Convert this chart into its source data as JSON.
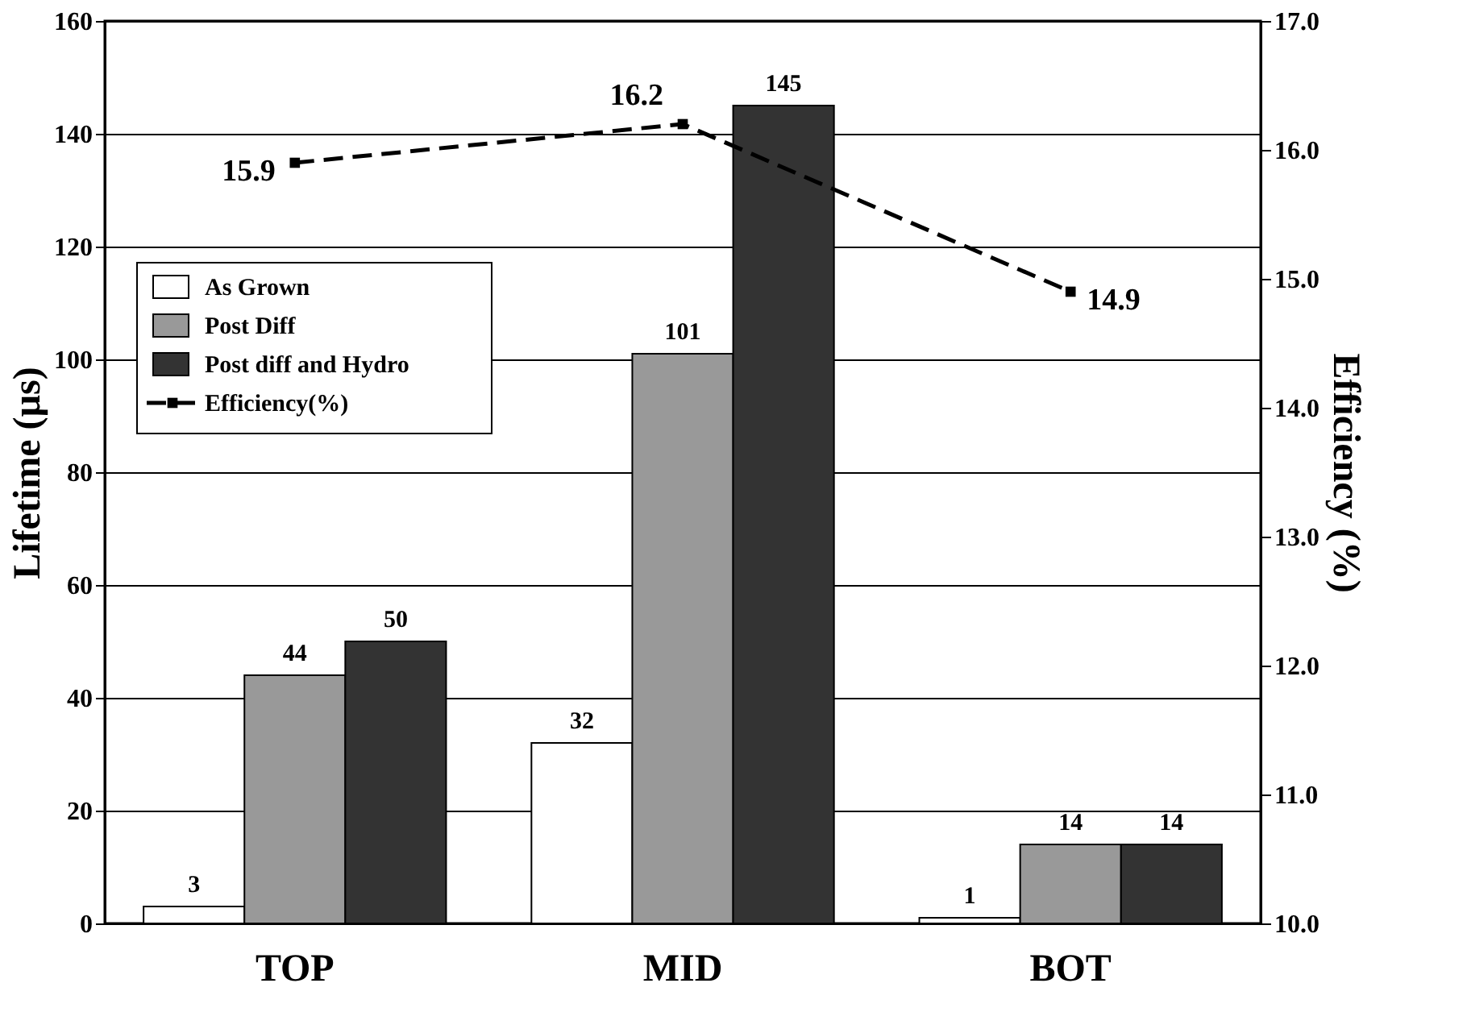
{
  "chart_data": {
    "type": "bar",
    "categories": [
      "TOP",
      "MID",
      "BOT"
    ],
    "ylabel": "Lifetime (µs)",
    "y2label": "Efficiency (%)",
    "series": [
      {
        "name": "As Grown",
        "color": "#ffffff",
        "values": [
          3,
          32,
          1
        ]
      },
      {
        "name": "Post Diff",
        "color": "#999999",
        "values": [
          44,
          101,
          14
        ]
      },
      {
        "name": "Post diff and Hydro",
        "color": "#333333",
        "values": [
          50,
          145,
          14
        ]
      },
      {
        "name": "Efficiency(%)",
        "type": "line",
        "axis": "y2",
        "color": "#000000",
        "marker": "square",
        "line_style": "dashed",
        "values": [
          15.9,
          16.2,
          14.9
        ]
      }
    ],
    "ylim": [
      0,
      160
    ],
    "yticks": [
      0,
      20,
      40,
      60,
      80,
      100,
      120,
      140,
      160
    ],
    "y2lim": [
      10,
      17
    ],
    "y2ticks": [
      {
        "value": 10,
        "label": "10.0"
      },
      {
        "value": 11,
        "label": "11.0"
      },
      {
        "value": 12,
        "label": "12.0"
      },
      {
        "value": 13,
        "label": "13.0"
      },
      {
        "value": 14,
        "label": "14.0"
      },
      {
        "value": 15,
        "label": "15.0"
      },
      {
        "value": 16,
        "label": "16.0"
      },
      {
        "value": 17,
        "label": "17.0"
      }
    ],
    "grid": "y",
    "legend": "top left",
    "data_labels": true
  }
}
